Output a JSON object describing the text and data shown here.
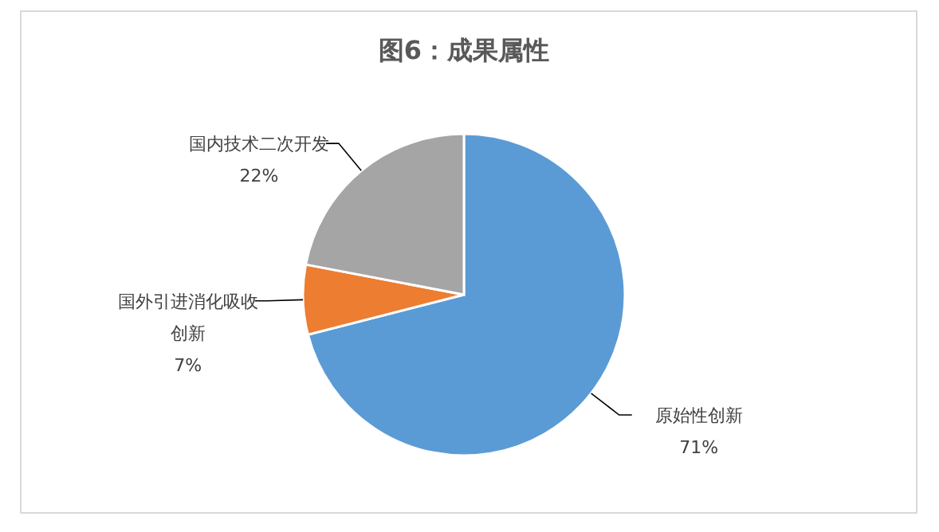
{
  "chart_data": {
    "type": "pie",
    "title": "图6：成果属性",
    "categories": [
      "原始性创新",
      "国外引进消化吸收创新",
      "国内技术二次开发"
    ],
    "values": [
      71,
      7,
      22
    ],
    "colors": [
      "#5b9bd5",
      "#ed7d31",
      "#a5a5a5"
    ],
    "value_labels": [
      "71%",
      "7%",
      "22%"
    ]
  }
}
